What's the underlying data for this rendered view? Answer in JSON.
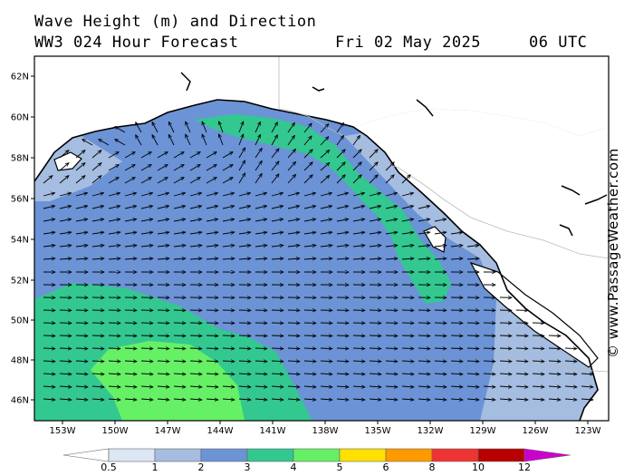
{
  "header": {
    "title": "Wave Height (m) and Direction",
    "model": "WW3 024 Hour Forecast",
    "date": "Fri 02 May 2025",
    "time": "06 UTC"
  },
  "credit": "© www.PassageWeather.com",
  "axes": {
    "lat_labels": [
      "62N",
      "60N",
      "58N",
      "56N",
      "54N",
      "52N",
      "50N",
      "48N",
      "46N"
    ],
    "lon_labels": [
      "153W",
      "150W",
      "147W",
      "144W",
      "141W",
      "138W",
      "135W",
      "132W",
      "129W",
      "126W",
      "123W"
    ]
  },
  "legend": {
    "labels": [
      "0.5",
      "1",
      "2",
      "3",
      "4",
      "5",
      "6",
      "8",
      "10",
      "12"
    ],
    "colors": [
      "#ffffff",
      "#dde6f5",
      "#a4bde0",
      "#6b93d6",
      "#33c890",
      "#66f066",
      "#ffe000",
      "#ff9900",
      "#ee3333",
      "#b80000",
      "#cc00cc"
    ]
  },
  "chart_data": {
    "type": "map",
    "lat_range": [
      45,
      63
    ],
    "lon_range": [
      -155,
      -122.5
    ],
    "arrow_direction": "predominantly eastward, turning northward in Gulf of Alaska",
    "dominant_wave_height_band_m": "2-3"
  }
}
